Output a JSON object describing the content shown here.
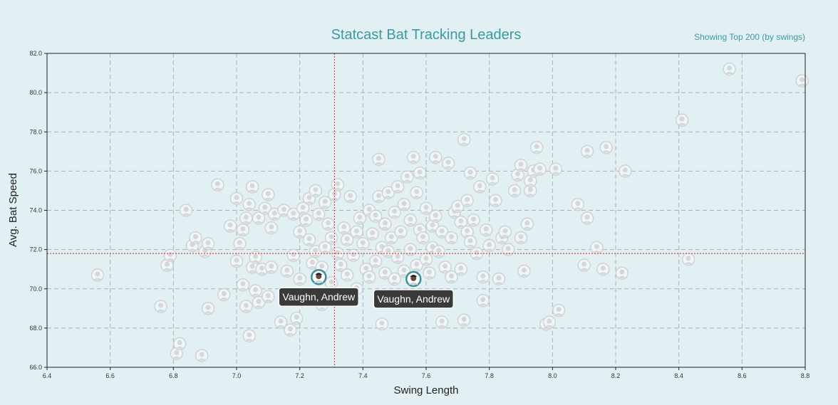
{
  "header": {
    "title": "Statcast Bat Tracking Leaders",
    "subtitle": "Showing Top 200 (by swings)"
  },
  "colors": {
    "title": "#3a9a9e",
    "crosshair": "#e0444b",
    "background": "#e3f0f3",
    "highlight_ring": "#3d8f96",
    "tooltip": "#3a3a3a"
  },
  "chart_data": {
    "type": "scatter",
    "title": "Statcast Bat Tracking Leaders",
    "subtitle": "Showing Top 200 (by swings)",
    "xlabel": "Swing Length",
    "ylabel": "Avg. Bat Speed",
    "xlim": [
      6.4,
      8.8
    ],
    "ylim": [
      66.0,
      82.0
    ],
    "x_ticks": [
      "6.4",
      "6.6",
      "6.8",
      "7.0",
      "7.2",
      "7.4",
      "7.6",
      "7.8",
      "8.0",
      "8.2",
      "8.4",
      "8.6",
      "8.8"
    ],
    "y_ticks": [
      "66.0",
      "68.0",
      "70.0",
      "72.0",
      "74.0",
      "76.0",
      "78.0",
      "80.0",
      "82.0"
    ],
    "grid": true,
    "marker": "player-headshot",
    "crosshair": {
      "x": 7.31,
      "y": 71.8
    },
    "highlighted": [
      {
        "name": "Vaughn, Andrew",
        "x": 7.26,
        "y": 70.6
      },
      {
        "name": "Vaughn, Andrew",
        "x": 7.56,
        "y": 70.5
      }
    ],
    "points": [
      [
        6.56,
        70.7
      ],
      [
        6.76,
        69.1
      ],
      [
        6.78,
        71.2
      ],
      [
        6.79,
        71.7
      ],
      [
        6.81,
        66.7
      ],
      [
        6.82,
        67.2
      ],
      [
        6.84,
        74.0
      ],
      [
        6.86,
        72.2
      ],
      [
        6.87,
        72.6
      ],
      [
        6.89,
        66.6
      ],
      [
        6.9,
        71.9
      ],
      [
        6.91,
        69.0
      ],
      [
        6.91,
        72.3
      ],
      [
        6.94,
        75.3
      ],
      [
        6.96,
        69.7
      ],
      [
        6.98,
        73.2
      ],
      [
        7.0,
        74.6
      ],
      [
        7.0,
        71.4
      ],
      [
        7.01,
        72.3
      ],
      [
        7.02,
        70.2
      ],
      [
        7.02,
        73.0
      ],
      [
        7.03,
        69.1
      ],
      [
        7.03,
        73.6
      ],
      [
        7.04,
        67.6
      ],
      [
        7.04,
        74.3
      ],
      [
        7.05,
        71.1
      ],
      [
        7.05,
        75.2
      ],
      [
        7.06,
        71.6
      ],
      [
        7.06,
        69.9
      ],
      [
        7.07,
        69.3
      ],
      [
        7.07,
        73.6
      ],
      [
        7.08,
        71.0
      ],
      [
        7.09,
        74.1
      ],
      [
        7.1,
        74.8
      ],
      [
        7.1,
        69.6
      ],
      [
        7.11,
        73.1
      ],
      [
        7.11,
        71.1
      ],
      [
        7.12,
        73.8
      ],
      [
        7.14,
        68.3
      ],
      [
        7.15,
        74.0
      ],
      [
        7.16,
        70.9
      ],
      [
        7.17,
        67.9
      ],
      [
        7.18,
        71.7
      ],
      [
        7.18,
        73.8
      ],
      [
        7.19,
        68.5
      ],
      [
        7.2,
        70.5
      ],
      [
        7.2,
        72.9
      ],
      [
        7.21,
        74.1
      ],
      [
        7.22,
        73.5
      ],
      [
        7.23,
        72.5
      ],
      [
        7.23,
        74.6
      ],
      [
        7.24,
        71.3
      ],
      [
        7.25,
        75.0
      ],
      [
        7.25,
        71.9
      ],
      [
        7.26,
        73.8
      ],
      [
        7.27,
        69.2
      ],
      [
        7.27,
        71.1
      ],
      [
        7.28,
        72.1
      ],
      [
        7.28,
        74.4
      ],
      [
        7.29,
        73.3
      ],
      [
        7.3,
        70.3
      ],
      [
        7.3,
        72.6
      ],
      [
        7.31,
        74.8
      ],
      [
        7.32,
        75.3
      ],
      [
        7.32,
        71.8
      ],
      [
        7.33,
        71.2
      ],
      [
        7.34,
        73.1
      ],
      [
        7.35,
        70.7
      ],
      [
        7.35,
        72.5
      ],
      [
        7.36,
        74.7
      ],
      [
        7.37,
        71.7
      ],
      [
        7.38,
        72.9
      ],
      [
        7.38,
        70.0
      ],
      [
        7.39,
        73.6
      ],
      [
        7.4,
        72.3
      ],
      [
        7.41,
        71.0
      ],
      [
        7.42,
        74.0
      ],
      [
        7.42,
        70.6
      ],
      [
        7.43,
        72.8
      ],
      [
        7.44,
        71.4
      ],
      [
        7.44,
        73.7
      ],
      [
        7.45,
        74.7
      ],
      [
        7.45,
        76.6
      ],
      [
        7.46,
        72.1
      ],
      [
        7.46,
        68.2
      ],
      [
        7.47,
        70.8
      ],
      [
        7.47,
        73.3
      ],
      [
        7.48,
        74.9
      ],
      [
        7.48,
        71.9
      ],
      [
        7.49,
        72.6
      ],
      [
        7.5,
        70.5
      ],
      [
        7.5,
        73.9
      ],
      [
        7.51,
        75.2
      ],
      [
        7.51,
        71.6
      ],
      [
        7.52,
        72.9
      ],
      [
        7.53,
        74.3
      ],
      [
        7.53,
        70.9
      ],
      [
        7.54,
        75.7
      ],
      [
        7.55,
        73.5
      ],
      [
        7.55,
        72.0
      ],
      [
        7.56,
        76.7
      ],
      [
        7.57,
        71.2
      ],
      [
        7.57,
        74.9
      ],
      [
        7.58,
        73.0
      ],
      [
        7.58,
        75.9
      ],
      [
        7.59,
        72.6
      ],
      [
        7.6,
        71.5
      ],
      [
        7.6,
        74.1
      ],
      [
        7.61,
        70.8
      ],
      [
        7.62,
        73.2
      ],
      [
        7.62,
        72.1
      ],
      [
        7.63,
        76.7
      ],
      [
        7.63,
        73.7
      ],
      [
        7.64,
        71.9
      ],
      [
        7.65,
        72.9
      ],
      [
        7.65,
        68.3
      ],
      [
        7.66,
        71.1
      ],
      [
        7.67,
        76.4
      ],
      [
        7.68,
        70.6
      ],
      [
        7.68,
        72.6
      ],
      [
        7.69,
        73.9
      ],
      [
        7.7,
        74.2
      ],
      [
        7.71,
        71.0
      ],
      [
        7.71,
        73.4
      ],
      [
        7.72,
        68.4
      ],
      [
        7.72,
        77.6
      ],
      [
        7.73,
        74.5
      ],
      [
        7.73,
        72.9
      ],
      [
        7.74,
        75.9
      ],
      [
        7.74,
        72.4
      ],
      [
        7.75,
        73.5
      ],
      [
        7.76,
        71.8
      ],
      [
        7.77,
        75.2
      ],
      [
        7.78,
        70.6
      ],
      [
        7.78,
        69.4
      ],
      [
        7.79,
        73.0
      ],
      [
        7.8,
        72.2
      ],
      [
        7.81,
        75.6
      ],
      [
        7.82,
        74.5
      ],
      [
        7.83,
        70.5
      ],
      [
        7.84,
        72.6
      ],
      [
        7.85,
        72.9
      ],
      [
        7.86,
        72.0
      ],
      [
        7.88,
        75.0
      ],
      [
        7.89,
        75.8
      ],
      [
        7.9,
        76.3
      ],
      [
        7.9,
        72.6
      ],
      [
        7.91,
        70.9
      ],
      [
        7.92,
        73.3
      ],
      [
        7.93,
        75.0
      ],
      [
        7.93,
        75.5
      ],
      [
        7.94,
        76.0
      ],
      [
        7.95,
        77.2
      ],
      [
        7.96,
        76.1
      ],
      [
        7.98,
        68.2
      ],
      [
        7.99,
        68.3
      ],
      [
        8.01,
        76.1
      ],
      [
        8.02,
        68.9
      ],
      [
        8.08,
        74.3
      ],
      [
        8.1,
        71.2
      ],
      [
        8.11,
        73.6
      ],
      [
        8.11,
        77.0
      ],
      [
        8.14,
        72.1
      ],
      [
        8.16,
        71.0
      ],
      [
        8.17,
        77.2
      ],
      [
        8.22,
        70.8
      ],
      [
        8.23,
        76.0
      ],
      [
        8.41,
        78.6
      ],
      [
        8.43,
        71.5
      ],
      [
        8.56,
        81.2
      ],
      [
        8.79,
        80.6
      ]
    ]
  }
}
